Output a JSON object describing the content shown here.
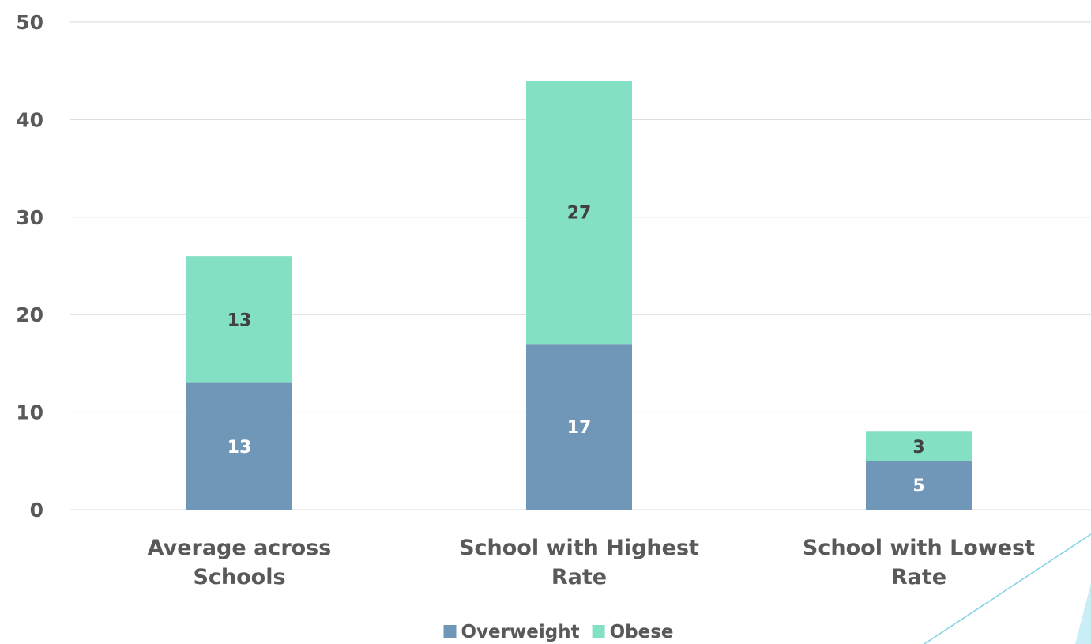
{
  "chart_data": {
    "type": "bar",
    "stacked": true,
    "categories": [
      "Average across Schools",
      "School with Highest Rate",
      "School with Lowest Rate"
    ],
    "series": [
      {
        "name": "Overweight",
        "values": [
          13,
          17,
          5
        ],
        "color": "#7097b8",
        "label_color": "#ffffff"
      },
      {
        "name": "Obese",
        "values": [
          13,
          27,
          3
        ],
        "color": "#84e0c4",
        "label_color": "#404040"
      }
    ],
    "ylim": [
      0,
      50
    ],
    "yticks": [
      0,
      10,
      20,
      30,
      40,
      50
    ],
    "grid": true,
    "legend_position": "bottom",
    "title": "",
    "xlabel": "",
    "ylabel": ""
  },
  "colors": {
    "gridline": "#d9d9d9",
    "axis_text": "#595959",
    "accent_line": "#7fd1e8",
    "accent_fill": "#c9eef8"
  }
}
